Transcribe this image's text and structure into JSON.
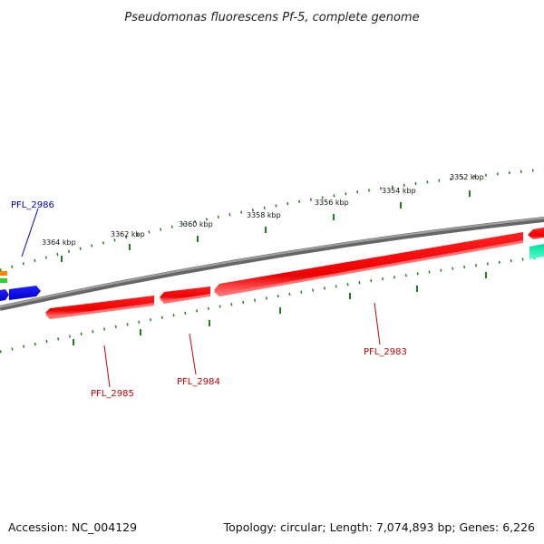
{
  "title": "Pseudomonas fluorescens Pf-5, complete genome",
  "footer": {
    "accession": "Accession: NC_004129",
    "summary": "Topology: circular; Length: 7,074,893 bp; Genes: 6,226"
  },
  "colors": {
    "backbone": "#808080",
    "tick": "#1e7d1e",
    "reverse_gene": "#ff0000",
    "reverse_gene_label": "#cc0000",
    "forward_gene": "#0000ff",
    "forward_gene_label": "#0000cc",
    "rna_gene": "#00cc88",
    "misc_orange": "#ff8800",
    "misc_green": "#33cc33"
  },
  "scale_labels": [
    "3364 kbp",
    "3362 kbp",
    "3360 kbp",
    "3358 kbp",
    "3356 kbp",
    "3354 kbp",
    "3352 kbp"
  ],
  "genes": [
    {
      "name": "PFL_2986",
      "strand": "forward"
    },
    {
      "name": "PFL_2985",
      "strand": "reverse"
    },
    {
      "name": "PFL_2984",
      "strand": "reverse"
    },
    {
      "name": "PFL_2983",
      "strand": "reverse"
    }
  ]
}
